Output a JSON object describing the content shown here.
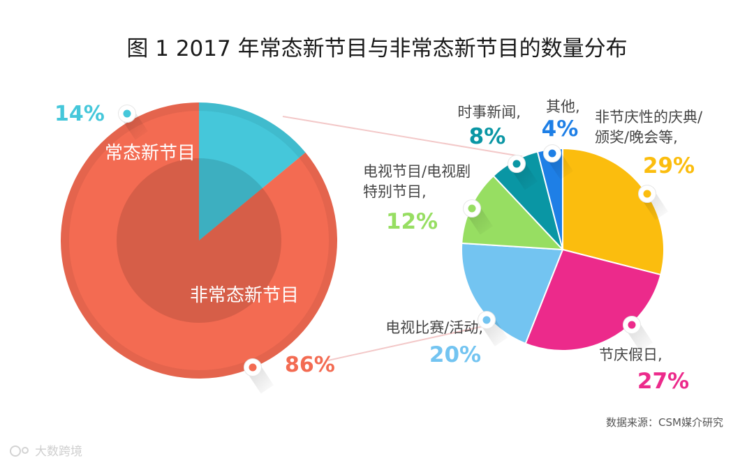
{
  "title": "图 1  2017 年常态新节目与非常态新节目的数量分布",
  "source": "数据来源：CSM媒介研究",
  "watermark": "大数跨境",
  "chart_data": [
    {
      "type": "pie",
      "slices": [
        {
          "label": "常态新节目",
          "value": 14,
          "value_label": "14%",
          "color": "#45C7DA"
        },
        {
          "label": "非常态新节目",
          "value": 86,
          "value_label": "86%",
          "color": "#F36B52"
        }
      ]
    },
    {
      "type": "pie",
      "slices": [
        {
          "label_lines": [
            "非节庆性的庆典/",
            "颁奖/晚会等,"
          ],
          "value": 29,
          "value_label": "29%",
          "color": "#FBBD0E"
        },
        {
          "label_lines": [
            "节庆假日,"
          ],
          "value": 27,
          "value_label": "27%",
          "color": "#EC2A8B"
        },
        {
          "label_lines": [
            "电视比赛/活动,"
          ],
          "value": 20,
          "value_label": "20%",
          "color": "#73C4F1"
        },
        {
          "label_lines": [
            "电视节目/电视剧",
            "特别节目,"
          ],
          "value": 12,
          "value_label": "12%",
          "color": "#97DE62"
        },
        {
          "label_lines": [
            "时事新闻,"
          ],
          "value": 8,
          "value_label": "8%",
          "color": "#0A96A4"
        },
        {
          "label_lines": [
            "其他,"
          ],
          "value": 4,
          "value_label": "4%",
          "color": "#1E7FE6"
        }
      ]
    }
  ]
}
